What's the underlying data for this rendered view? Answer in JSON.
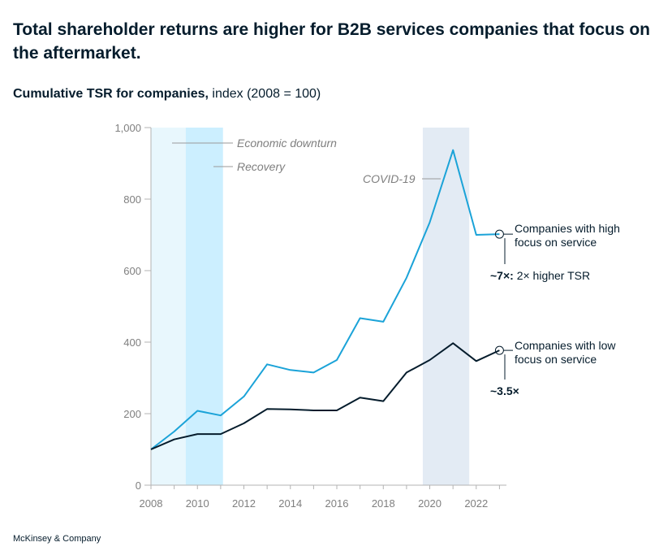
{
  "title": "Total shareholder returns are higher for B2B services companies that focus on the aftermarket.",
  "subtitle": {
    "bold": "Cumulative TSR for companies,",
    "rest": " index (2008 = 100)"
  },
  "footer": "McKinsey & Company",
  "chart_data": {
    "type": "line",
    "x": [
      2008,
      2009,
      2010,
      2011,
      2012,
      2013,
      2014,
      2015,
      2016,
      2017,
      2018,
      2019,
      2020,
      2021,
      2022,
      2023
    ],
    "series": [
      {
        "name": "Companies with high focus on service",
        "label_lines": [
          "Companies with high",
          "focus on service"
        ],
        "color": "#1ba3d8",
        "values": [
          100,
          150,
          208,
          195,
          248,
          338,
          322,
          315,
          350,
          467,
          457,
          580,
          735,
          937,
          700,
          702
        ]
      },
      {
        "name": "Companies with low focus on service",
        "label_lines": [
          "Companies with low",
          "focus on service"
        ],
        "color": "#051c2c",
        "values": [
          100,
          128,
          143,
          143,
          173,
          213,
          212,
          209,
          209,
          245,
          235,
          315,
          350,
          397,
          347,
          377
        ]
      }
    ],
    "xticks": [
      "2008",
      "2010",
      "2012",
      "2014",
      "2016",
      "2018",
      "2020",
      "2022"
    ],
    "xtick_values": [
      2008,
      2010,
      2012,
      2014,
      2016,
      2018,
      2020,
      2022
    ],
    "yticks": [
      "0",
      "200",
      "400",
      "600",
      "800",
      "1,000"
    ],
    "ytick_values": [
      0,
      200,
      400,
      600,
      800,
      1000
    ],
    "xlim": [
      2008,
      2023.3
    ],
    "ylim": [
      0,
      1000
    ],
    "bands": [
      {
        "name": "Economic downturn",
        "from": 2008,
        "to": 2009.5,
        "color": "#e8f7fd"
      },
      {
        "name": "Recovery",
        "from": 2009.5,
        "to": 2011.1,
        "color": "#ccefff"
      },
      {
        "name": "COVID-19",
        "from": 2019.7,
        "to": 2021.7,
        "color": "#e3ebf4"
      }
    ],
    "annotations": {
      "downturn": "Economic downturn",
      "recovery": "Recovery",
      "covid": "COVID-19"
    },
    "multipliers": {
      "high_bold": "~7×:",
      "high_rest": " 2× higher TSR",
      "low_bold": "~3.5×"
    }
  }
}
